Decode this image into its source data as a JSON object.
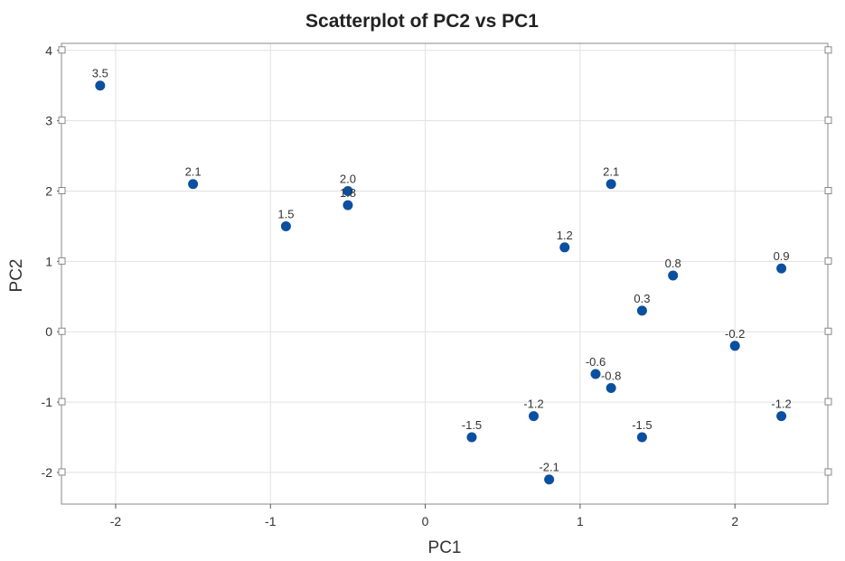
{
  "chart_data": {
    "type": "scatter",
    "title": "Scatterplot of PC2 vs PC1",
    "xlabel": "PC1",
    "ylabel": "PC2",
    "xlim": [
      -2.35,
      2.6
    ],
    "ylim": [
      -2.45,
      4.1
    ],
    "xticks": [
      -2,
      -1,
      0,
      1,
      2
    ],
    "yticks": [
      -2,
      -1,
      0,
      1,
      2,
      3,
      4
    ],
    "xtick_labels": [
      "-2",
      "-1",
      "0",
      "1",
      "2"
    ],
    "ytick_labels": [
      "-2",
      "-1",
      "0",
      "1",
      "2",
      "3",
      "4"
    ],
    "grid": true,
    "marker_color": "#0b4fa0",
    "points": [
      {
        "x": -2.1,
        "y": 3.5,
        "label": "3.5"
      },
      {
        "x": -1.5,
        "y": 2.1,
        "label": "2.1"
      },
      {
        "x": -0.9,
        "y": 1.5,
        "label": "1.5"
      },
      {
        "x": -0.5,
        "y": 2.0,
        "label": "2.0"
      },
      {
        "x": -0.5,
        "y": 1.8,
        "label": "1.8"
      },
      {
        "x": 0.3,
        "y": -1.5,
        "label": "-1.5"
      },
      {
        "x": 0.7,
        "y": -1.2,
        "label": "-1.2"
      },
      {
        "x": 0.8,
        "y": -2.1,
        "label": "-2.1"
      },
      {
        "x": 0.9,
        "y": 1.2,
        "label": "1.2"
      },
      {
        "x": 1.1,
        "y": -0.6,
        "label": "-0.6"
      },
      {
        "x": 1.2,
        "y": 2.1,
        "label": "2.1"
      },
      {
        "x": 1.2,
        "y": -0.8,
        "label": "-0.8"
      },
      {
        "x": 1.4,
        "y": 0.3,
        "label": "0.3"
      },
      {
        "x": 1.4,
        "y": -1.5,
        "label": "-1.5"
      },
      {
        "x": 1.6,
        "y": 0.8,
        "label": "0.8"
      },
      {
        "x": 2.0,
        "y": -0.2,
        "label": "-0.2"
      },
      {
        "x": 2.3,
        "y": 0.9,
        "label": "0.9"
      },
      {
        "x": 2.3,
        "y": -1.2,
        "label": "-1.2"
      }
    ]
  }
}
